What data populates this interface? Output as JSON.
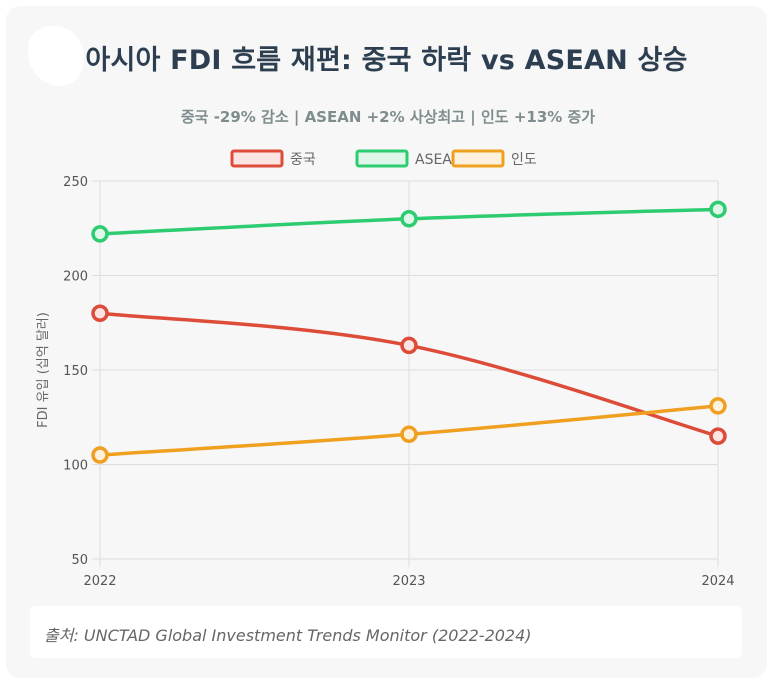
{
  "title": "아시아 FDI 흐름 재편: 중국 하락 vs ASEAN 상승",
  "source": "출처: UNCTAD Global Investment Trends Monitor (2022-2024)",
  "chart_data": {
    "type": "line",
    "title": "중국 -29% 감소 | ASEAN +2% 사상최고 | 인도 +13% 증가",
    "xlabel": "",
    "ylabel": "FDI 유입 (십억 달러)",
    "categories": [
      "2022",
      "2023",
      "2024"
    ],
    "ylim": [
      50,
      250
    ],
    "yticks": [
      50,
      100,
      150,
      200,
      250
    ],
    "grid": true,
    "legend_position": "top",
    "series": [
      {
        "name": "중국",
        "values": [
          180,
          163,
          115
        ],
        "color": "#dd4b39",
        "fill": "#fbe5e3"
      },
      {
        "name": "ASEAN",
        "values": [
          222,
          230,
          235
        ],
        "color": "#2ecc71",
        "fill": "#def7e8"
      },
      {
        "name": "인도",
        "values": [
          105,
          116,
          131
        ],
        "color": "#f0a020",
        "fill": "#fdf0dc"
      }
    ]
  }
}
